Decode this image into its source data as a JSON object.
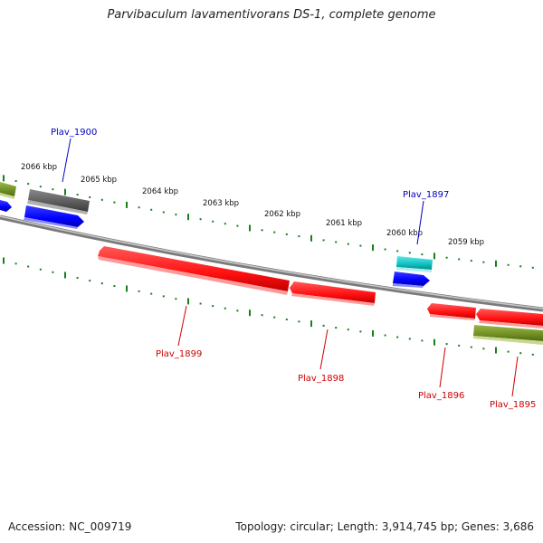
{
  "title": "Parvibaculum lavamentivorans DS-1, complete genome",
  "footer": {
    "accession": "Accession: NC_009719",
    "summary": "Topology: circular; Length: 3,914,745 bp; Genes: 3,686"
  },
  "scale_labels": [
    "2066 kbp",
    "2065 kbp",
    "2064 kbp",
    "2063 kbp",
    "2062 kbp",
    "2061 kbp",
    "2060 kbp",
    "2059 kbp"
  ],
  "gene_labels": {
    "g1900": "Plav_1900",
    "g1897": "Plav_1897",
    "g1899": "Plav_1899",
    "g1898": "Plav_1898",
    "g1896": "Plav_1896",
    "g1895": "Plav_1895"
  },
  "colors": {
    "backbone": "#8a8a8a",
    "tick": "#1a7f1a",
    "forward_label": "#0000c0",
    "reverse_label": "#d00000",
    "red_gene": "#ff1a1a",
    "blue_gene": "#0a0aff",
    "olive_gene": "#7a9a2a",
    "gray_gene": "#6a6a6a",
    "cyan_gene": "#1ac8c8"
  }
}
